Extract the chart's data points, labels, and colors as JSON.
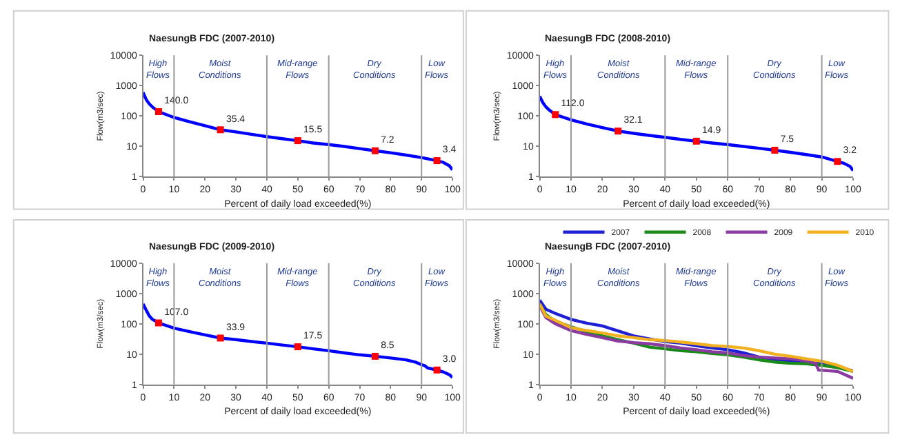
{
  "chart_data": [
    {
      "type": "line",
      "title": "NaesungB FDC (2007-2010)",
      "xlabel": "Percent of daily load exceeded(%)",
      "ylabel": "Flow(m3/sec)",
      "xlim": [
        0,
        100
      ],
      "xticks": [
        0,
        10,
        20,
        30,
        40,
        50,
        60,
        70,
        80,
        90,
        100
      ],
      "ylim": [
        1,
        10000
      ],
      "yticks": [
        1,
        10,
        100,
        1000,
        10000
      ],
      "log": "y",
      "legend": false,
      "ref_lines": [
        {
          "axis": "x",
          "value": 10,
          "color": "#999999"
        },
        {
          "axis": "x",
          "value": 40,
          "color": "#999999"
        },
        {
          "axis": "x",
          "value": 60,
          "color": "#999999"
        },
        {
          "axis": "x",
          "value": 90,
          "color": "#999999"
        }
      ],
      "annotations": [
        "High\nFlows",
        "Moist\nConditions",
        "Mid-range\nFlows",
        "Dry\nConditions",
        "Low\nFlows"
      ],
      "series": [
        {
          "color": "#0000ff",
          "x": [
            0,
            1,
            2,
            3,
            5,
            10,
            15,
            20,
            25,
            30,
            35,
            40,
            45,
            50,
            55,
            60,
            65,
            70,
            75,
            80,
            85,
            90,
            95,
            97,
            99,
            100
          ],
          "values": [
            600,
            350,
            250,
            200,
            140,
            90,
            65,
            48,
            35.4,
            30,
            25,
            21,
            18,
            15.5,
            13,
            11.5,
            10,
            8.5,
            7.2,
            6.2,
            5.2,
            4.3,
            3.4,
            3,
            2.3,
            1.7
          ]
        },
        {
          "type": "scatter",
          "marker": "square",
          "color": "#ff0000",
          "x": [
            5,
            25,
            50,
            75,
            95
          ],
          "values": [
            140.0,
            35.4,
            15.5,
            7.2,
            3.4
          ],
          "value_labels": [
            "140.0",
            "35.4",
            "15.5",
            "7.2",
            "3.4"
          ]
        }
      ]
    },
    {
      "type": "line",
      "title": "NaesungB FDC (2008-2010)",
      "xlabel": "Percent of daily load exceeded(%)",
      "ylabel": "Flow(m3/sec)",
      "xlim": [
        0,
        100
      ],
      "xticks": [
        0,
        10,
        20,
        30,
        40,
        50,
        60,
        70,
        80,
        90,
        100
      ],
      "ylim": [
        1,
        10000
      ],
      "yticks": [
        1,
        10,
        100,
        1000,
        10000
      ],
      "log": "y",
      "legend": false,
      "ref_lines": [
        {
          "axis": "x",
          "value": 10,
          "color": "#999999"
        },
        {
          "axis": "x",
          "value": 40,
          "color": "#999999"
        },
        {
          "axis": "x",
          "value": 60,
          "color": "#999999"
        },
        {
          "axis": "x",
          "value": 90,
          "color": "#999999"
        }
      ],
      "annotations": [
        "High\nFlows",
        "Moist\nConditions",
        "Mid-range\nFlows",
        "Dry\nConditions",
        "Low\nFlows"
      ],
      "series": [
        {
          "color": "#0000ff",
          "x": [
            0,
            1,
            2,
            3,
            5,
            10,
            15,
            20,
            25,
            30,
            35,
            40,
            45,
            50,
            55,
            60,
            65,
            70,
            75,
            80,
            85,
            90,
            95,
            97,
            99,
            100
          ],
          "values": [
            450,
            280,
            200,
            160,
            112,
            75,
            55,
            42,
            32.1,
            27,
            23,
            20,
            17,
            14.9,
            13,
            11.5,
            10,
            8.7,
            7.5,
            6.4,
            5.4,
            4.5,
            3.2,
            2.8,
            2.2,
            1.6
          ]
        },
        {
          "type": "scatter",
          "marker": "square",
          "color": "#ff0000",
          "x": [
            5,
            25,
            50,
            75,
            95
          ],
          "values": [
            112.0,
            32.1,
            14.9,
            7.5,
            3.2
          ],
          "value_labels": [
            "112.0",
            "32.1",
            "14.9",
            "7.5",
            "3.2"
          ]
        }
      ]
    },
    {
      "type": "line",
      "title": "NaesungB FDC (2009-2010)",
      "xlabel": "Percent of daily load exceeded(%)",
      "ylabel": "Flow(m3/sec)",
      "xlim": [
        0,
        100
      ],
      "xticks": [
        0,
        10,
        20,
        30,
        40,
        50,
        60,
        70,
        80,
        90,
        100
      ],
      "ylim": [
        1,
        10000
      ],
      "yticks": [
        1,
        10,
        100,
        1000,
        10000
      ],
      "log": "y",
      "legend": false,
      "ref_lines": [
        {
          "axis": "x",
          "value": 10,
          "color": "#999999"
        },
        {
          "axis": "x",
          "value": 40,
          "color": "#999999"
        },
        {
          "axis": "x",
          "value": 60,
          "color": "#999999"
        },
        {
          "axis": "x",
          "value": 90,
          "color": "#999999"
        }
      ],
      "annotations": [
        "High\nFlows",
        "Moist\nConditions",
        "Mid-range\nFlows",
        "Dry\nConditions",
        "Low\nFlows"
      ],
      "series": [
        {
          "color": "#0000ff",
          "x": [
            0,
            1,
            2,
            3,
            5,
            10,
            15,
            20,
            25,
            30,
            35,
            40,
            45,
            50,
            55,
            60,
            65,
            70,
            75,
            80,
            85,
            88,
            90,
            91,
            92,
            95,
            97,
            99,
            100
          ],
          "values": [
            450,
            280,
            180,
            140,
            107,
            72,
            55,
            43,
            33.9,
            30,
            26,
            23,
            20,
            17.5,
            15,
            13,
            11,
            9.5,
            8.5,
            7.5,
            6.5,
            5.5,
            4.5,
            4.2,
            3.5,
            3.0,
            2.6,
            2.1,
            1.7
          ]
        },
        {
          "type": "scatter",
          "marker": "square",
          "color": "#ff0000",
          "x": [
            5,
            25,
            50,
            75,
            95
          ],
          "values": [
            107.0,
            33.9,
            17.5,
            8.5,
            3.0
          ],
          "value_labels": [
            "107.0",
            "33.9",
            "17.5",
            "8.5",
            "3.0"
          ]
        }
      ]
    },
    {
      "type": "line",
      "title": "NaesungB FDC (2007-2010)",
      "xlabel": "Percent of daily load exceeded(%)",
      "ylabel": "Flow(m3/sec)",
      "xlim": [
        0,
        100
      ],
      "xticks": [
        0,
        10,
        20,
        30,
        40,
        50,
        60,
        70,
        80,
        90,
        100
      ],
      "ylim": [
        1,
        10000
      ],
      "yticks": [
        1,
        10,
        100,
        1000,
        10000
      ],
      "log": "y",
      "legend": "top right",
      "ref_lines": [
        {
          "axis": "x",
          "value": 10,
          "color": "#999999"
        },
        {
          "axis": "x",
          "value": 40,
          "color": "#999999"
        },
        {
          "axis": "x",
          "value": 60,
          "color": "#999999"
        },
        {
          "axis": "x",
          "value": 90,
          "color": "#999999"
        }
      ],
      "annotations": [
        "High\nFlows",
        "Moist\nConditions",
        "Mid-range\nFlows",
        "Dry\nConditions",
        "Low\nFlows"
      ],
      "series": [
        {
          "name": "2007",
          "color": "#1f1fd6",
          "x": [
            0,
            2,
            5,
            10,
            15,
            20,
            25,
            30,
            35,
            40,
            45,
            50,
            55,
            60,
            65,
            70,
            75,
            80,
            85,
            90,
            95,
            100
          ],
          "values": [
            600,
            300,
            220,
            140,
            105,
            85,
            58,
            40,
            32,
            26,
            23,
            19,
            16,
            14,
            11,
            8,
            6.5,
            6,
            5.5,
            4.8,
            3.8,
            2.8
          ]
        },
        {
          "name": "2008",
          "color": "#1a8a1a",
          "x": [
            0,
            2,
            5,
            10,
            15,
            20,
            25,
            30,
            35,
            40,
            45,
            50,
            55,
            60,
            65,
            70,
            75,
            80,
            85,
            90,
            95,
            100
          ],
          "values": [
            450,
            200,
            120,
            80,
            55,
            40,
            30,
            23,
            17,
            15,
            13,
            12,
            10.5,
            9.5,
            8,
            6.5,
            5.5,
            5,
            4.8,
            4.3,
            3.6,
            2.7
          ]
        },
        {
          "name": "2009",
          "color": "#8a3aa0",
          "x": [
            0,
            2,
            5,
            10,
            15,
            20,
            25,
            30,
            35,
            40,
            45,
            50,
            55,
            60,
            65,
            70,
            75,
            80,
            85,
            88,
            89,
            95,
            100
          ],
          "values": [
            400,
            160,
            100,
            60,
            45,
            35,
            27,
            24,
            22,
            19,
            16,
            14,
            12,
            11,
            9,
            8,
            7.5,
            7,
            6,
            5,
            3,
            2.7,
            1.6
          ]
        },
        {
          "name": "2010",
          "color": "#f0b020",
          "x": [
            0,
            2,
            5,
            10,
            15,
            20,
            25,
            30,
            35,
            40,
            45,
            50,
            55,
            60,
            65,
            70,
            75,
            80,
            85,
            90,
            95,
            100
          ],
          "values": [
            450,
            180,
            130,
            75,
            60,
            50,
            40,
            35,
            30,
            28,
            25,
            22,
            19,
            18,
            16,
            13,
            10,
            8.5,
            7,
            5.8,
            4.3,
            2.7
          ]
        }
      ]
    }
  ]
}
